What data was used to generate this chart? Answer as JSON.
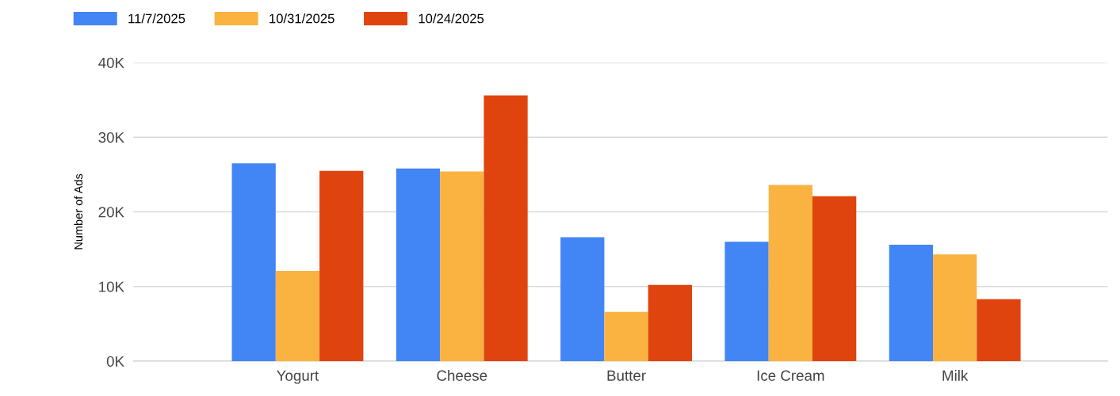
{
  "chart_data": {
    "type": "bar",
    "ylabel": "Number of Ads",
    "categories": [
      "Yogurt",
      "Cheese",
      "Butter",
      "Ice Cream",
      "Milk"
    ],
    "series": [
      {
        "name": "11/7/2025",
        "color": "#4285f4",
        "values": [
          26.5,
          25.8,
          16.6,
          16.0,
          15.6
        ]
      },
      {
        "name": "10/31/2025",
        "color": "#fab341",
        "values": [
          12.1,
          25.4,
          6.6,
          23.6,
          14.3
        ]
      },
      {
        "name": "10/24/2025",
        "color": "#e0440e",
        "values": [
          25.5,
          35.6,
          10.2,
          22.1,
          8.3
        ]
      }
    ],
    "ylim": [
      0,
      40
    ],
    "yticks": [
      {
        "value": 0,
        "label": "0K"
      },
      {
        "value": 10,
        "label": "10K"
      },
      {
        "value": 20,
        "label": "20K"
      },
      {
        "value": 30,
        "label": "30K"
      },
      {
        "value": 40,
        "label": "40K"
      }
    ],
    "grid": "y",
    "legend": "top left"
  }
}
